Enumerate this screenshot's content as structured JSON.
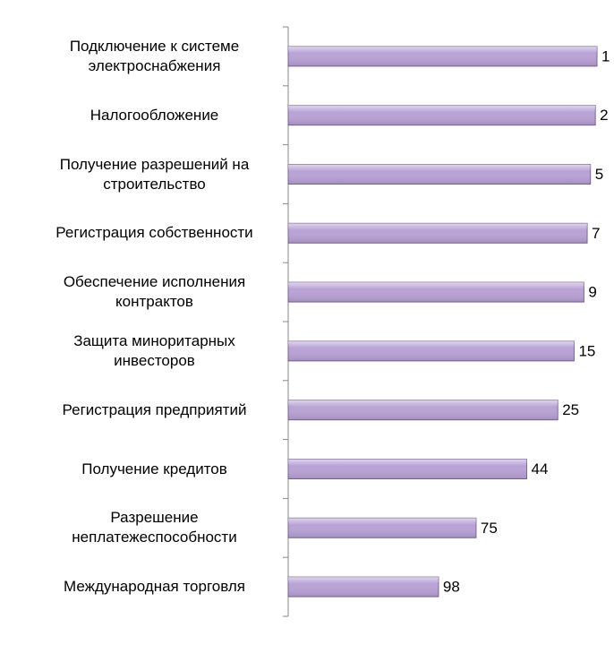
{
  "chart_data": {
    "type": "bar",
    "orientation": "horizontal",
    "categories": [
      "Подключение к системе электроснабжения",
      "Налогообложение",
      "Получение разрешений на строительство",
      "Регистрация собственности",
      "Обеспечение исполнения контрактов",
      "Защита миноритарных инвесторов",
      "Регистрация предприятий",
      "Получение кредитов",
      "Разрешение неплатежеспособности",
      "Международная торговля"
    ],
    "values": [
      1,
      2,
      5,
      7,
      9,
      15,
      25,
      44,
      75,
      98
    ],
    "color": "#b9a3d6",
    "xlim": [
      190,
      0
    ]
  }
}
